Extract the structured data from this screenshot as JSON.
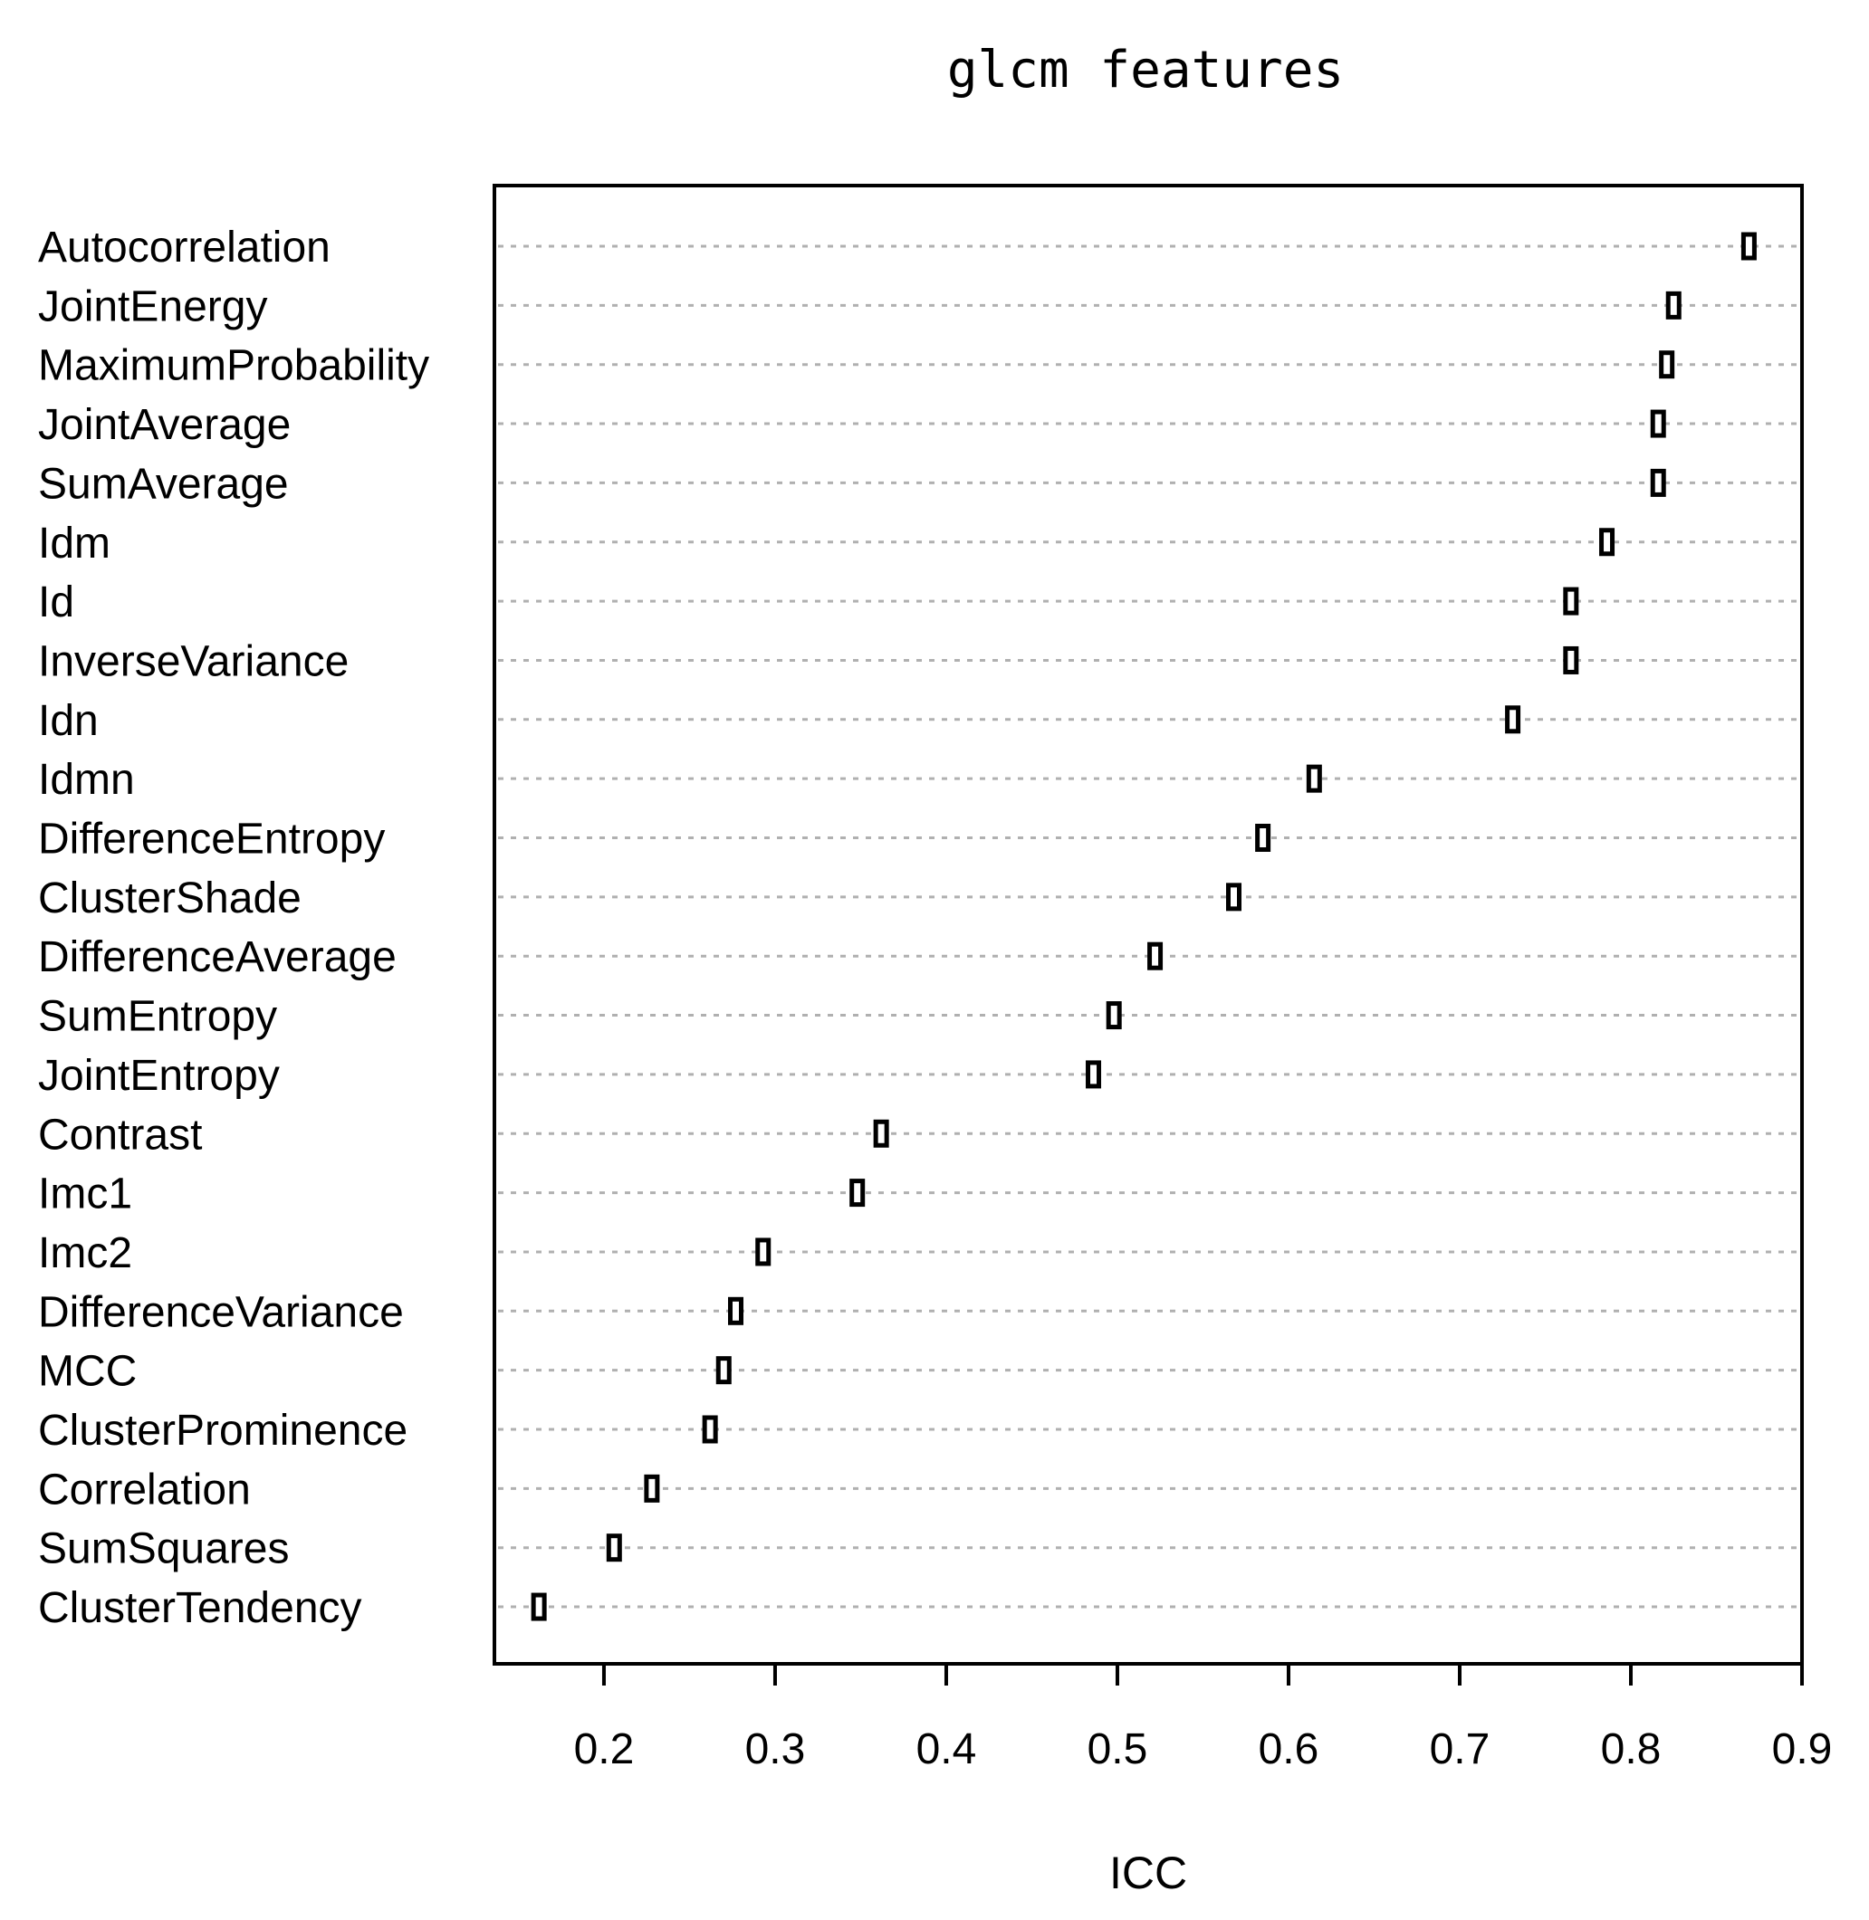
{
  "chart_data": {
    "type": "dotchart",
    "title": "glcm features",
    "xlabel": "ICC",
    "ylabel": "",
    "xlim": [
      0.136,
      0.9
    ],
    "x_ticks": [
      0.2,
      0.3,
      0.4,
      0.5,
      0.6,
      0.7,
      0.8,
      0.9
    ],
    "x_tick_labels": [
      "0.2",
      "0.3",
      "0.4",
      "0.5",
      "0.6",
      "0.7",
      "0.8",
      "0.9"
    ],
    "reference_line": {
      "x": 0.9,
      "color": "#e02020",
      "style": "dashed"
    },
    "grid": "horizontal dotted",
    "marker": "open rectangle",
    "categories": [
      "Autocorrelation",
      "JointEnergy",
      "MaximumProbability",
      "JointAverage",
      "SumAverage",
      "Idm",
      "Id",
      "InverseVariance",
      "Idn",
      "Idmn",
      "DifferenceEntropy",
      "ClusterShade",
      "DifferenceAverage",
      "SumEntropy",
      "JointEntropy",
      "Contrast",
      "Imc1",
      "Imc2",
      "DifferenceVariance",
      "MCC",
      "ClusterProminence",
      "Correlation",
      "SumSquares",
      "ClusterTendency"
    ],
    "values": [
      0.869,
      0.825,
      0.821,
      0.816,
      0.816,
      0.786,
      0.765,
      0.765,
      0.731,
      0.615,
      0.585,
      0.568,
      0.522,
      0.498,
      0.486,
      0.362,
      0.348,
      0.293,
      0.277,
      0.27,
      0.262,
      0.228,
      0.206,
      0.162
    ]
  }
}
